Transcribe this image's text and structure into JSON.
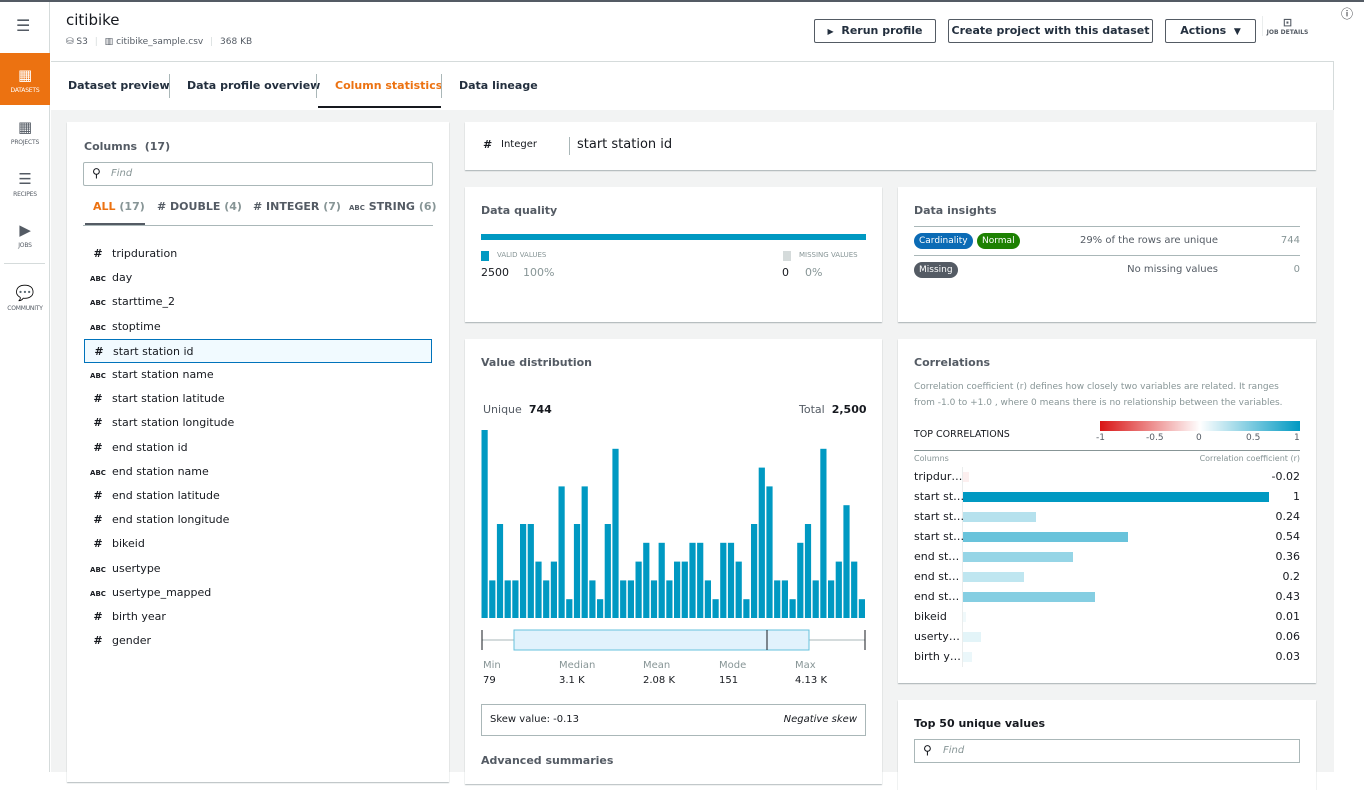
{
  "app": {
    "menu_icon": "hamburger-icon",
    "info_icon": "info-icon"
  },
  "sidebar": {
    "items": [
      {
        "label": "DATASETS",
        "icon": "grid-icon",
        "active": true
      },
      {
        "label": "PROJECTS",
        "icon": "projects-icon"
      },
      {
        "label": "RECIPES",
        "icon": "list-icon"
      },
      {
        "label": "JOBS",
        "icon": "play-icon"
      },
      {
        "label": "COMMUNITY",
        "icon": "chat-icon"
      }
    ]
  },
  "header": {
    "title": "citibike",
    "source": "S3",
    "file": "citibike_sample.csv",
    "size": "368 KB",
    "rerun": "Rerun profile",
    "create": "Create project with this dataset",
    "actions": "Actions",
    "job_details": "JOB DETAILS"
  },
  "tabs": [
    {
      "label": "Dataset preview"
    },
    {
      "label": "Data profile overview"
    },
    {
      "label": "Column statistics",
      "active": true
    },
    {
      "label": "Data lineage"
    }
  ],
  "columns": {
    "title": "Columns",
    "count": "(17)",
    "find_placeholder": "Find",
    "filters": [
      {
        "label": "ALL",
        "count": "(17)",
        "active": true
      },
      {
        "label": "# DOUBLE",
        "count": "(4)"
      },
      {
        "label": "# INTEGER",
        "count": "(7)"
      },
      {
        "label": "STRING",
        "count": "(6)"
      }
    ],
    "items": [
      {
        "type": "#",
        "name": "tripduration"
      },
      {
        "type": "ABC",
        "name": "day"
      },
      {
        "type": "ABC",
        "name": "starttime_2"
      },
      {
        "type": "ABC",
        "name": "stoptime"
      },
      {
        "type": "#",
        "name": "start station id",
        "selected": true
      },
      {
        "type": "ABC",
        "name": "start station name"
      },
      {
        "type": "#",
        "name": "start station latitude"
      },
      {
        "type": "#",
        "name": "start station longitude"
      },
      {
        "type": "#",
        "name": "end station id"
      },
      {
        "type": "ABC",
        "name": "end station name"
      },
      {
        "type": "#",
        "name": "end station latitude"
      },
      {
        "type": "#",
        "name": "end station longitude"
      },
      {
        "type": "#",
        "name": "bikeid"
      },
      {
        "type": "ABC",
        "name": "usertype"
      },
      {
        "type": "ABC",
        "name": "usertype_mapped"
      },
      {
        "type": "#",
        "name": "birth year"
      },
      {
        "type": "#",
        "name": "gender"
      }
    ]
  },
  "selected_column": {
    "type_icon": "#",
    "type": "Integer",
    "name": "start station id"
  },
  "data_quality": {
    "title": "Data quality",
    "valid_label": "VALID VALUES",
    "valid_count": "2500",
    "valid_pct": "100%",
    "missing_label": "MISSING VALUES",
    "missing_count": "0",
    "missing_pct": "0%",
    "valid_fraction": 1.0,
    "valid_color": "#0099c2"
  },
  "data_insights": {
    "title": "Data insights",
    "rows": [
      {
        "badges": [
          {
            "label": "Cardinality",
            "color": "#0b6bb5"
          },
          {
            "label": "Normal",
            "color": "#1d8102"
          }
        ],
        "text": "29% of the rows are unique",
        "value": "744"
      },
      {
        "badges": [
          {
            "label": "Missing",
            "color": "#545b64"
          }
        ],
        "text": "No missing values",
        "value": "0"
      }
    ]
  },
  "value_distribution": {
    "title": "Value distribution",
    "unique_label": "Unique",
    "unique": "744",
    "total_label": "Total",
    "total": "2,500",
    "stats": [
      {
        "label": "Min",
        "value": "79"
      },
      {
        "label": "Median",
        "value": "3.1 K"
      },
      {
        "label": "Mean",
        "value": "2.08 K"
      },
      {
        "label": "Mode",
        "value": "151"
      },
      {
        "label": "Max",
        "value": "4.13 K"
      }
    ],
    "skew_label": "Skew value: -0.13",
    "skew_desc": "Negative skew",
    "advanced": "Advanced summaries"
  },
  "chart_data": [
    {
      "type": "bar",
      "title": "",
      "bar_color": "#0099c2",
      "values": [
        10,
        2,
        5,
        2,
        2,
        5,
        5,
        3,
        2,
        3,
        7,
        1,
        5,
        7,
        2,
        1,
        5,
        9,
        2,
        2,
        3,
        4,
        2,
        4,
        2,
        3,
        3,
        4,
        4,
        2,
        1,
        4,
        4,
        3,
        1,
        5,
        8,
        7,
        2,
        2,
        1,
        4,
        5,
        2,
        9,
        2,
        3,
        6,
        3,
        1
      ]
    },
    {
      "type": "bar",
      "orientation": "horizontal",
      "title": "TOP CORRELATIONS",
      "xlabel": "Correlation coefficient (r)",
      "ylabel": "Columns",
      "scale_ticks": [
        "-1",
        "-0.5",
        "0",
        "0.5",
        "1"
      ],
      "xlim": [
        -1,
        1
      ],
      "categories": [
        "tripdur…",
        "start st…",
        "start st…",
        "start st…",
        "end st…",
        "end st…",
        "end st…",
        "bikeid",
        "userty…",
        "birth y…"
      ],
      "values": [
        -0.02,
        1,
        0.24,
        0.54,
        0.36,
        0.2,
        0.43,
        0.01,
        0.06,
        0.03
      ],
      "labels": [
        "-0.02",
        "1",
        "0.24",
        "0.54",
        "0.36",
        "0.2",
        "0.43",
        "0.01",
        "0.06",
        "0.03"
      ],
      "negative_color": "#d91515",
      "positive_color": "#0099c2"
    }
  ],
  "correlations": {
    "title": "Correlations",
    "description": "Correlation coefficient (r) defines how closely two variables are related. It ranges from -1.0 to +1.0 , where 0 means there is no relationship between the variables."
  },
  "top_unique": {
    "title": "Top 50 unique values",
    "find_placeholder": "Find"
  }
}
